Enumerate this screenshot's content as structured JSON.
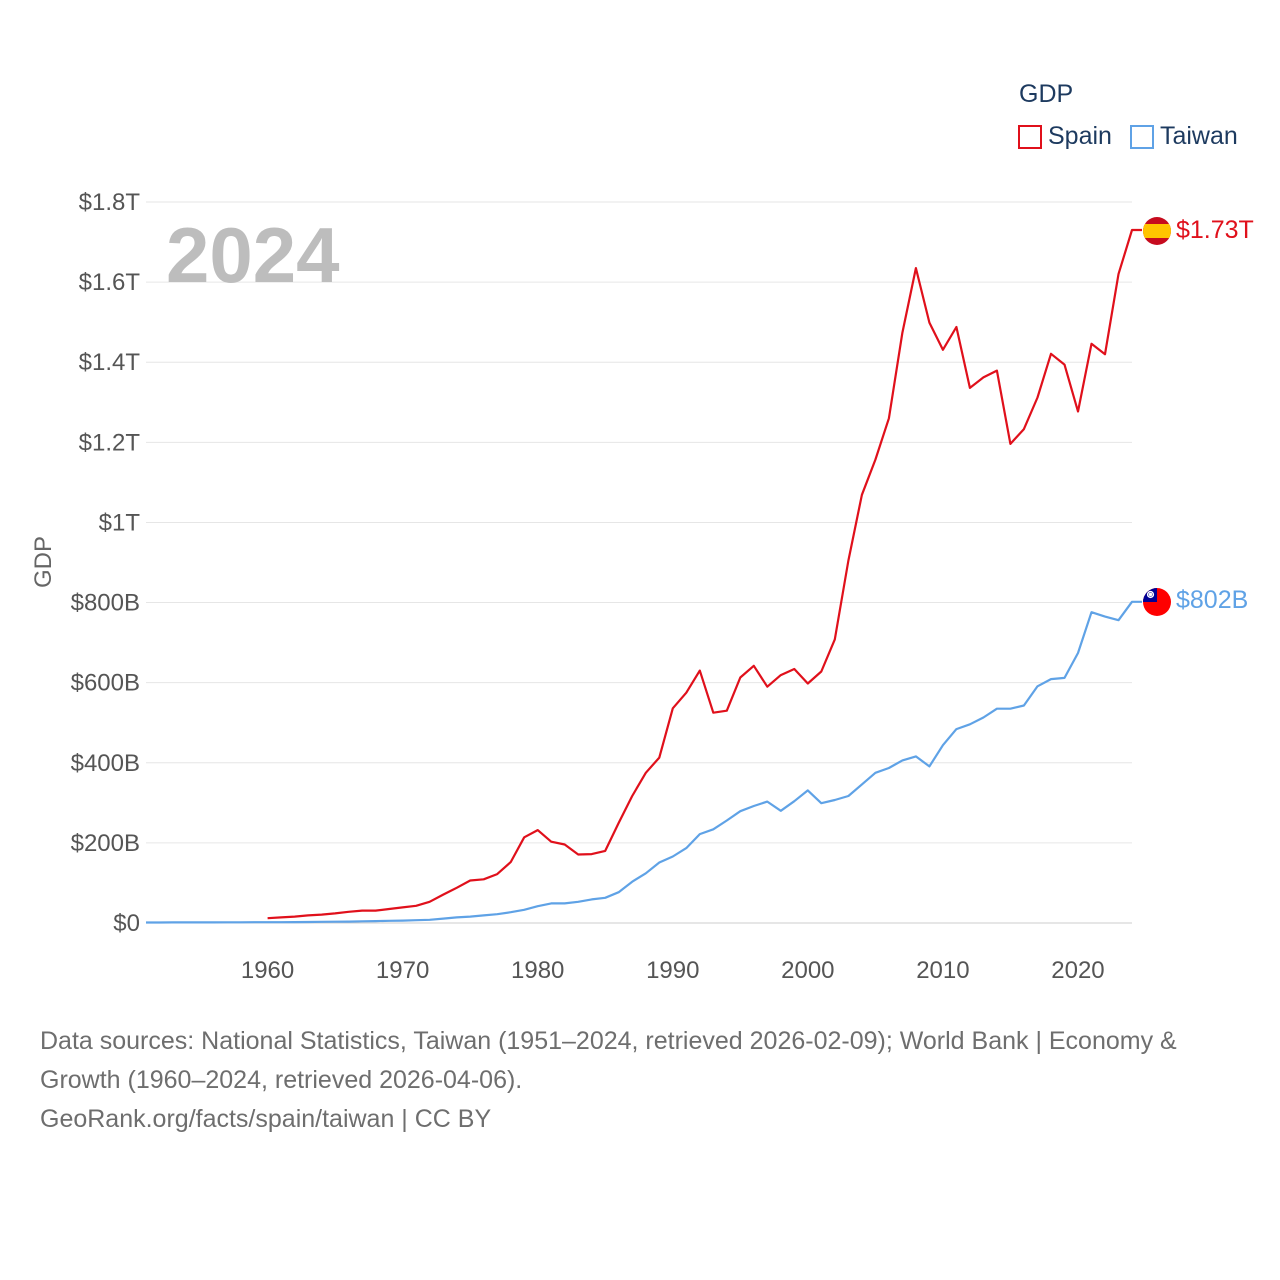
{
  "legend": {
    "title": "GDP",
    "items": [
      {
        "name": "Spain",
        "color": "#e0101b"
      },
      {
        "name": "Taiwan",
        "color": "#5fa2e6"
      }
    ]
  },
  "footer": {
    "line1": "Data sources: National Statistics, Taiwan (1951–2024, retrieved 2026-02-09); World Bank | Economy &",
    "line2": "Growth (1960–2024, retrieved 2026-04-06).",
    "line3": "GeoRank.org/facts/spain/taiwan | CC BY"
  },
  "chart_data": {
    "type": "line",
    "title": "GDP",
    "ylabel": "GDP",
    "xlabel": "",
    "year_label": "2024",
    "xlim": [
      1951,
      2024
    ],
    "ylim": [
      0,
      1800
    ],
    "y_unit": "billions USD",
    "x_ticks": [
      1960,
      1970,
      1980,
      1990,
      2000,
      2010,
      2020
    ],
    "y_ticks": [
      {
        "value": 0,
        "label": "$0"
      },
      {
        "value": 200,
        "label": "$200B"
      },
      {
        "value": 400,
        "label": "$400B"
      },
      {
        "value": 600,
        "label": "$600B"
      },
      {
        "value": 800,
        "label": "$800B"
      },
      {
        "value": 1000,
        "label": "$1T"
      },
      {
        "value": 1200,
        "label": "$1.2T"
      },
      {
        "value": 1400,
        "label": "$1.4T"
      },
      {
        "value": 1600,
        "label": "$1.6T"
      },
      {
        "value": 1800,
        "label": "$1.8T"
      }
    ],
    "series": [
      {
        "name": "Spain",
        "color": "#e0101b",
        "end_label": "$1.73T",
        "flag": "spain-flag",
        "points": [
          [
            1960,
            12
          ],
          [
            1961,
            14
          ],
          [
            1962,
            16
          ],
          [
            1963,
            19
          ],
          [
            1964,
            21
          ],
          [
            1965,
            24
          ],
          [
            1966,
            28
          ],
          [
            1967,
            31
          ],
          [
            1968,
            31
          ],
          [
            1969,
            35
          ],
          [
            1970,
            39
          ],
          [
            1971,
            43
          ],
          [
            1972,
            53
          ],
          [
            1973,
            71
          ],
          [
            1974,
            88
          ],
          [
            1975,
            106
          ],
          [
            1976,
            109
          ],
          [
            1977,
            122
          ],
          [
            1978,
            152
          ],
          [
            1979,
            214
          ],
          [
            1980,
            232
          ],
          [
            1981,
            203
          ],
          [
            1982,
            196
          ],
          [
            1983,
            171
          ],
          [
            1984,
            172
          ],
          [
            1985,
            180
          ],
          [
            1986,
            250
          ],
          [
            1987,
            317
          ],
          [
            1988,
            375
          ],
          [
            1989,
            413
          ],
          [
            1990,
            536
          ],
          [
            1991,
            575
          ],
          [
            1992,
            630
          ],
          [
            1993,
            525
          ],
          [
            1994,
            530
          ],
          [
            1995,
            613
          ],
          [
            1996,
            642
          ],
          [
            1997,
            590
          ],
          [
            1998,
            619
          ],
          [
            1999,
            634
          ],
          [
            2000,
            598
          ],
          [
            2001,
            628
          ],
          [
            2002,
            708
          ],
          [
            2003,
            905
          ],
          [
            2004,
            1069
          ],
          [
            2005,
            1157
          ],
          [
            2006,
            1260
          ],
          [
            2007,
            1474
          ],
          [
            2008,
            1635
          ],
          [
            2009,
            1499
          ],
          [
            2010,
            1431
          ],
          [
            2011,
            1488
          ],
          [
            2012,
            1336
          ],
          [
            2013,
            1362
          ],
          [
            2014,
            1379
          ],
          [
            2015,
            1196
          ],
          [
            2016,
            1233
          ],
          [
            2017,
            1312
          ],
          [
            2018,
            1421
          ],
          [
            2019,
            1394
          ],
          [
            2020,
            1277
          ],
          [
            2021,
            1446
          ],
          [
            2022,
            1420
          ],
          [
            2023,
            1620
          ],
          [
            2024,
            1730
          ]
        ]
      },
      {
        "name": "Taiwan",
        "color": "#5fa2e6",
        "end_label": "$802B",
        "flag": "taiwan-flag",
        "points": [
          [
            1951,
            1.2
          ],
          [
            1952,
            1.3
          ],
          [
            1953,
            1.4
          ],
          [
            1954,
            1.5
          ],
          [
            1955,
            1.6
          ],
          [
            1956,
            1.6
          ],
          [
            1957,
            1.7
          ],
          [
            1958,
            1.8
          ],
          [
            1959,
            1.9
          ],
          [
            1960,
            1.9
          ],
          [
            1961,
            2
          ],
          [
            1962,
            2.2
          ],
          [
            1963,
            2.5
          ],
          [
            1964,
            2.9
          ],
          [
            1965,
            3.3
          ],
          [
            1966,
            3.6
          ],
          [
            1967,
            4.2
          ],
          [
            1968,
            4.7
          ],
          [
            1969,
            5.5
          ],
          [
            1970,
            6
          ],
          [
            1971,
            7
          ],
          [
            1972,
            8
          ],
          [
            1973,
            11
          ],
          [
            1974,
            14
          ],
          [
            1975,
            16
          ],
          [
            1976,
            19
          ],
          [
            1977,
            22
          ],
          [
            1978,
            27
          ],
          [
            1979,
            33
          ],
          [
            1980,
            42
          ],
          [
            1981,
            49
          ],
          [
            1982,
            49
          ],
          [
            1983,
            53
          ],
          [
            1984,
            59
          ],
          [
            1985,
            63
          ],
          [
            1986,
            77
          ],
          [
            1987,
            103
          ],
          [
            1988,
            124
          ],
          [
            1989,
            151
          ],
          [
            1990,
            166
          ],
          [
            1991,
            187
          ],
          [
            1992,
            222
          ],
          [
            1993,
            234
          ],
          [
            1994,
            256
          ],
          [
            1995,
            279
          ],
          [
            1996,
            292
          ],
          [
            1997,
            303
          ],
          [
            1998,
            280
          ],
          [
            1999,
            304
          ],
          [
            2000,
            331
          ],
          [
            2001,
            299
          ],
          [
            2002,
            307
          ],
          [
            2003,
            317
          ],
          [
            2004,
            346
          ],
          [
            2005,
            375
          ],
          [
            2006,
            387
          ],
          [
            2007,
            406
          ],
          [
            2008,
            416
          ],
          [
            2009,
            391
          ],
          [
            2010,
            444
          ],
          [
            2011,
            484
          ],
          [
            2012,
            496
          ],
          [
            2013,
            513
          ],
          [
            2014,
            535
          ],
          [
            2015,
            535
          ],
          [
            2016,
            543
          ],
          [
            2017,
            591
          ],
          [
            2018,
            609
          ],
          [
            2019,
            612
          ],
          [
            2020,
            674
          ],
          [
            2021,
            776
          ],
          [
            2022,
            765
          ],
          [
            2023,
            756
          ],
          [
            2024,
            802
          ]
        ]
      }
    ]
  }
}
